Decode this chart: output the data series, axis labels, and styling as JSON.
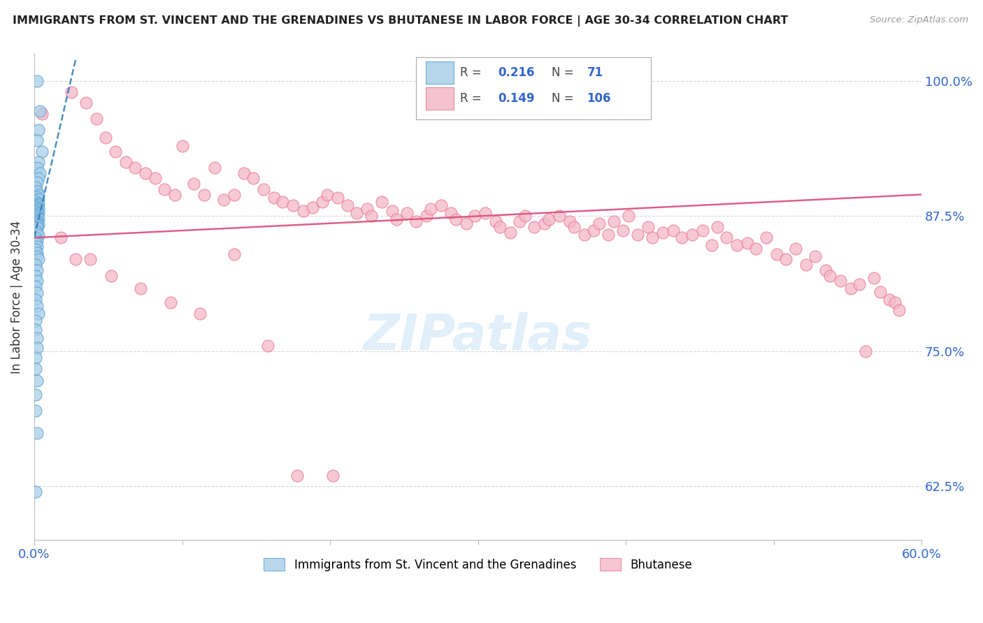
{
  "title": "IMMIGRANTS FROM ST. VINCENT AND THE GRENADINES VS BHUTANESE IN LABOR FORCE | AGE 30-34 CORRELATION CHART",
  "source": "Source: ZipAtlas.com",
  "ylabel": "In Labor Force | Age 30-34",
  "blue_R": 0.216,
  "blue_N": 71,
  "pink_R": 0.149,
  "pink_N": 106,
  "xmin": 0.0,
  "xmax": 0.6,
  "ymin": 0.575,
  "ymax": 1.025,
  "yticks": [
    0.625,
    0.75,
    0.875,
    1.0
  ],
  "ytick_labels": [
    "62.5%",
    "75.0%",
    "87.5%",
    "100.0%"
  ],
  "xticks": [
    0.0,
    0.1,
    0.2,
    0.3,
    0.4,
    0.5,
    0.6
  ],
  "blue_color": "#a8cfe8",
  "pink_color": "#f4b8c8",
  "blue_edge": "#5a9fd4",
  "pink_edge": "#e8789a",
  "trend_blue_color": "#2c7bb6",
  "trend_pink_color": "#d94f7a",
  "watermark_color": "#cce5f5",
  "blue_scatter_x": [
    0.002,
    0.004,
    0.003,
    0.002,
    0.005,
    0.003,
    0.002,
    0.004,
    0.003,
    0.002,
    0.001,
    0.002,
    0.003,
    0.002,
    0.003,
    0.001,
    0.002,
    0.003,
    0.002,
    0.001,
    0.002,
    0.003,
    0.002,
    0.001,
    0.002,
    0.003,
    0.002,
    0.001,
    0.002,
    0.002,
    0.003,
    0.001,
    0.002,
    0.002,
    0.001,
    0.002,
    0.003,
    0.002,
    0.001,
    0.002,
    0.001,
    0.002,
    0.003,
    0.001,
    0.002,
    0.001,
    0.002,
    0.001,
    0.002,
    0.002,
    0.003,
    0.001,
    0.002,
    0.001,
    0.002,
    0.001,
    0.002,
    0.001,
    0.002,
    0.003,
    0.001,
    0.001,
    0.002,
    0.002,
    0.001,
    0.001,
    0.002,
    0.001,
    0.001,
    0.002,
    0.001
  ],
  "blue_scatter_y": [
    1.0,
    0.972,
    0.955,
    0.945,
    0.935,
    0.925,
    0.92,
    0.915,
    0.91,
    0.906,
    0.902,
    0.898,
    0.895,
    0.893,
    0.891,
    0.889,
    0.887,
    0.886,
    0.885,
    0.884,
    0.883,
    0.882,
    0.881,
    0.88,
    0.879,
    0.878,
    0.877,
    0.876,
    0.875,
    0.874,
    0.873,
    0.872,
    0.871,
    0.87,
    0.869,
    0.868,
    0.867,
    0.866,
    0.865,
    0.864,
    0.862,
    0.86,
    0.857,
    0.855,
    0.852,
    0.85,
    0.847,
    0.844,
    0.841,
    0.838,
    0.835,
    0.83,
    0.825,
    0.82,
    0.815,
    0.81,
    0.804,
    0.798,
    0.792,
    0.785,
    0.778,
    0.77,
    0.762,
    0.753,
    0.744,
    0.734,
    0.723,
    0.71,
    0.695,
    0.674,
    0.62
  ],
  "pink_scatter_x": [
    0.005,
    0.025,
    0.035,
    0.042,
    0.048,
    0.055,
    0.062,
    0.068,
    0.075,
    0.082,
    0.088,
    0.095,
    0.1,
    0.108,
    0.115,
    0.122,
    0.128,
    0.135,
    0.142,
    0.148,
    0.155,
    0.162,
    0.168,
    0.175,
    0.182,
    0.188,
    0.195,
    0.198,
    0.205,
    0.212,
    0.218,
    0.225,
    0.228,
    0.235,
    0.242,
    0.245,
    0.252,
    0.258,
    0.265,
    0.268,
    0.275,
    0.282,
    0.285,
    0.292,
    0.298,
    0.305,
    0.312,
    0.315,
    0.322,
    0.328,
    0.332,
    0.338,
    0.345,
    0.348,
    0.355,
    0.362,
    0.365,
    0.372,
    0.378,
    0.382,
    0.388,
    0.392,
    0.398,
    0.402,
    0.408,
    0.415,
    0.418,
    0.425,
    0.432,
    0.438,
    0.445,
    0.452,
    0.458,
    0.462,
    0.468,
    0.475,
    0.482,
    0.488,
    0.495,
    0.502,
    0.508,
    0.515,
    0.522,
    0.528,
    0.535,
    0.538,
    0.545,
    0.552,
    0.558,
    0.562,
    0.568,
    0.572,
    0.578,
    0.582,
    0.585,
    0.018,
    0.028,
    0.038,
    0.052,
    0.072,
    0.092,
    0.112,
    0.135,
    0.158,
    0.178,
    0.202
  ],
  "pink_scatter_y": [
    0.97,
    0.99,
    0.98,
    0.965,
    0.948,
    0.935,
    0.925,
    0.92,
    0.915,
    0.91,
    0.9,
    0.895,
    0.94,
    0.905,
    0.895,
    0.92,
    0.89,
    0.895,
    0.915,
    0.91,
    0.9,
    0.892,
    0.888,
    0.885,
    0.88,
    0.883,
    0.888,
    0.895,
    0.892,
    0.885,
    0.878,
    0.882,
    0.875,
    0.888,
    0.88,
    0.872,
    0.878,
    0.87,
    0.875,
    0.882,
    0.885,
    0.878,
    0.872,
    0.868,
    0.875,
    0.878,
    0.87,
    0.865,
    0.86,
    0.87,
    0.875,
    0.865,
    0.868,
    0.872,
    0.875,
    0.87,
    0.865,
    0.858,
    0.862,
    0.868,
    0.858,
    0.87,
    0.862,
    0.875,
    0.858,
    0.865,
    0.855,
    0.86,
    0.862,
    0.855,
    0.858,
    0.862,
    0.848,
    0.865,
    0.855,
    0.848,
    0.85,
    0.845,
    0.855,
    0.84,
    0.835,
    0.845,
    0.83,
    0.838,
    0.825,
    0.82,
    0.815,
    0.808,
    0.812,
    0.75,
    0.818,
    0.805,
    0.798,
    0.795,
    0.788,
    0.855,
    0.835,
    0.835,
    0.82,
    0.808,
    0.795,
    0.785,
    0.84,
    0.755,
    0.635,
    0.635
  ],
  "pink_trend_x": [
    0.0,
    0.6
  ],
  "pink_trend_y": [
    0.855,
    0.895
  ],
  "blue_trend_x": [
    0.0,
    0.028
  ],
  "blue_trend_y": [
    0.855,
    1.02
  ]
}
